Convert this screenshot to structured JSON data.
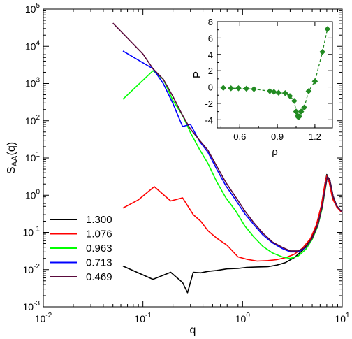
{
  "chart_data": [
    {
      "type": "line",
      "title": "",
      "xlabel": "q",
      "ylabel_main": "S",
      "ylabel_sub": "AA",
      "ylabel_tail": "(q)",
      "xscale": "log",
      "yscale": "log",
      "xlim": [
        0.01,
        10
      ],
      "ylim": [
        0.001,
        100000
      ],
      "x_tick_bases": [
        "10",
        "10",
        "10",
        "10"
      ],
      "x_tick_exps": [
        "-2",
        "-1",
        "0",
        "1"
      ],
      "y_tick_bases": [
        "10",
        "10",
        "10",
        "10",
        "10",
        "10",
        "10",
        "10",
        "10"
      ],
      "y_tick_exps": [
        "-3",
        "-2",
        "-1",
        "0",
        "1",
        "2",
        "3",
        "4",
        "5"
      ],
      "legend_position": "bottom-left",
      "grid": false,
      "series": [
        {
          "name": "1.300",
          "color": "#000000",
          "x": [
            0.063,
            0.126,
            0.19,
            0.25,
            0.28,
            0.32,
            0.38,
            0.45,
            0.55,
            0.7,
            0.9,
            1.1,
            1.4,
            1.8,
            2.2,
            2.7,
            3.3,
            4.0,
            4.8,
            5.5,
            6.2,
            6.7,
            7.0,
            7.4,
            8.0,
            8.8,
            9.6,
            10
          ],
          "y": [
            0.0125,
            0.0055,
            0.0085,
            0.0045,
            0.0024,
            0.0085,
            0.0082,
            0.009,
            0.0095,
            0.0105,
            0.0108,
            0.0115,
            0.0118,
            0.012,
            0.0132,
            0.0155,
            0.021,
            0.033,
            0.062,
            0.15,
            0.55,
            2.0,
            3.6,
            2.4,
            0.85,
            0.5,
            0.38,
            0.36
          ]
        },
        {
          "name": "1.076",
          "color": "#ff0000",
          "x": [
            0.063,
            0.09,
            0.13,
            0.19,
            0.25,
            0.32,
            0.38,
            0.45,
            0.55,
            0.7,
            0.9,
            1.1,
            1.4,
            1.8,
            2.2,
            2.7,
            3.3,
            4.0,
            4.8,
            5.5,
            6.2,
            6.7,
            7.0,
            7.4,
            8.0,
            8.8,
            9.6,
            10
          ],
          "y": [
            0.45,
            0.75,
            1.7,
            0.7,
            0.85,
            0.3,
            0.2,
            0.11,
            0.07,
            0.045,
            0.022,
            0.019,
            0.017,
            0.0175,
            0.0185,
            0.021,
            0.026,
            0.038,
            0.068,
            0.16,
            0.55,
            2.0,
            3.3,
            2.2,
            0.8,
            0.48,
            0.37,
            0.35
          ]
        },
        {
          "name": "0.963",
          "color": "#00ff00",
          "x": [
            0.063,
            0.126,
            0.16,
            0.2,
            0.25,
            0.3,
            0.37,
            0.45,
            0.55,
            0.68,
            0.85,
            1.05,
            1.3,
            1.6,
            2.0,
            2.5,
            3.0,
            3.6,
            4.3,
            5.0,
            5.7,
            6.3,
            6.8,
            7.1,
            7.5,
            8.1,
            8.8,
            9.6,
            10
          ],
          "y": [
            380,
            2200,
            1300,
            350,
            140,
            48,
            17,
            7,
            2.3,
            0.85,
            0.38,
            0.15,
            0.075,
            0.042,
            0.028,
            0.022,
            0.02,
            0.023,
            0.035,
            0.065,
            0.15,
            0.45,
            1.6,
            3.2,
            2.6,
            0.95,
            0.52,
            0.39,
            0.36
          ]
        },
        {
          "name": "0.713",
          "color": "#0000ff",
          "x": [
            0.063,
            0.126,
            0.16,
            0.2,
            0.25,
            0.3,
            0.37,
            0.45,
            0.55,
            0.68,
            0.85,
            1.05,
            1.3,
            1.6,
            2.0,
            2.5,
            3.0,
            3.6,
            4.3,
            5.0,
            5.7,
            6.3,
            6.8,
            7.1,
            7.5,
            8.1,
            8.8,
            9.6,
            10
          ],
          "y": [
            7500,
            2500,
            1000,
            290,
            70,
            80,
            28,
            14,
            5,
            1.8,
            0.75,
            0.32,
            0.16,
            0.085,
            0.052,
            0.037,
            0.03,
            0.03,
            0.039,
            0.07,
            0.16,
            0.5,
            1.7,
            3.2,
            2.6,
            0.95,
            0.52,
            0.39,
            0.36
          ]
        },
        {
          "name": "0.469",
          "color": "#5a0a3c",
          "x": [
            0.05,
            0.1,
            0.126,
            0.16,
            0.2,
            0.25,
            0.3,
            0.37,
            0.45,
            0.55,
            0.68,
            0.85,
            1.05,
            1.3,
            1.6,
            2.0,
            2.5,
            3.0,
            3.6,
            4.3,
            5.0,
            5.7,
            6.3,
            6.8,
            7.1,
            7.5,
            8.1,
            8.8,
            9.6,
            10
          ],
          "y": [
            42000,
            6200,
            2500,
            1300,
            450,
            140,
            60,
            30,
            16,
            6,
            2.2,
            0.9,
            0.38,
            0.18,
            0.095,
            0.055,
            0.04,
            0.032,
            0.032,
            0.04,
            0.07,
            0.16,
            0.5,
            1.7,
            3.2,
            2.6,
            0.95,
            0.52,
            0.39,
            0.36
          ]
        }
      ]
    },
    {
      "type": "scatter",
      "title": "",
      "xlabel": "ρ",
      "ylabel": "P",
      "xlim": [
        0.42,
        1.34
      ],
      "ylim": [
        -5,
        8
      ],
      "x_ticks": [
        "0.6",
        "0.9",
        "1.2"
      ],
      "y_ticks": [
        "-4",
        "-2",
        "0",
        "2",
        "4",
        "6",
        "8"
      ],
      "grid": false,
      "series": [
        {
          "name": "",
          "color": "#228b22",
          "x": [
            0.469,
            0.53,
            0.59,
            0.653,
            0.713,
            0.84,
            0.873,
            0.91,
            0.963,
            1.0,
            1.035,
            1.05,
            1.062,
            1.068,
            1.076,
            1.09,
            1.115,
            1.15,
            1.2,
            1.26,
            1.3
          ],
          "y": [
            -0.1,
            -0.15,
            -0.15,
            -0.2,
            -0.25,
            -0.5,
            -0.6,
            -0.7,
            -0.75,
            -1.1,
            -1.7,
            -3.0,
            -3.5,
            -3.7,
            -3.6,
            -3.0,
            -2.5,
            -0.5,
            0.7,
            4.3,
            7.1
          ]
        }
      ]
    }
  ]
}
